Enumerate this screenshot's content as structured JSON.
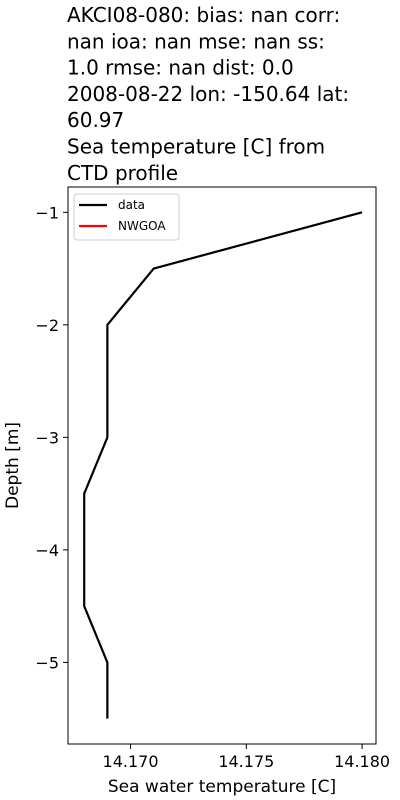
{
  "chart_data": {
    "type": "line",
    "title_lines": [
      "AKCI08-080: bias: nan  corr:",
      "nan  ioa: nan  mse: nan  ss:",
      "1.0  rmse: nan  dist: 0.0",
      "2008-08-22 lon: -150.64 lat:",
      "60.97",
      "Sea temperature [C] from",
      "CTD profile"
    ],
    "xlabel": "Sea water temperature [C]",
    "ylabel": "Depth [m]",
    "xlim": [
      14.1673,
      14.1806
    ],
    "ylim": [
      -5.725,
      -0.775
    ],
    "xticks": [
      14.17,
      14.175,
      14.18
    ],
    "xtick_labels": [
      "14.170",
      "14.175",
      "14.180"
    ],
    "yticks": [
      -1,
      -2,
      -3,
      -4,
      -5
    ],
    "ytick_labels": [
      "−1",
      "−2",
      "−3",
      "−4",
      "−5"
    ],
    "grid": false,
    "legend_position": "top-left",
    "series": [
      {
        "name": "data",
        "color": "#000000",
        "x": [
          14.18,
          14.171,
          14.169,
          14.169,
          14.168,
          14.168,
          14.169,
          14.169
        ],
        "y": [
          -1.0,
          -1.5,
          -2.0,
          -3.0,
          -3.5,
          -4.5,
          -5.0,
          -5.5
        ]
      },
      {
        "name": "NWGOA",
        "color": "#ff0000",
        "x": [],
        "y": []
      }
    ]
  }
}
